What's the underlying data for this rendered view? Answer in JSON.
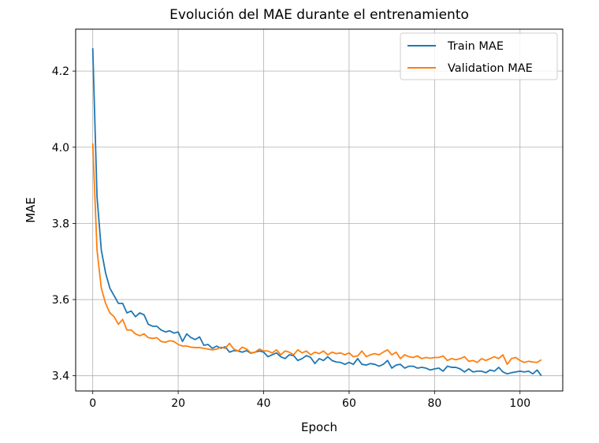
{
  "chart_data": {
    "type": "line",
    "title": "Evolución del MAE durante el entrenamiento",
    "xlabel": "Epoch",
    "ylabel": "MAE",
    "xlim": [
      -4,
      110
    ],
    "ylim": [
      3.36,
      4.31
    ],
    "xticks": [
      0,
      20,
      40,
      60,
      80,
      100
    ],
    "yticks": [
      3.4,
      3.6,
      3.8,
      4.0,
      4.2
    ],
    "xtick_labels": [
      "0",
      "20",
      "40",
      "60",
      "80",
      "100"
    ],
    "ytick_labels": [
      "3.4",
      "3.6",
      "3.8",
      "4.0",
      "4.2"
    ],
    "grid": true,
    "legend_position": "top-right",
    "series": [
      {
        "name": "Train MAE",
        "color": "#1f77b4",
        "values": [
          4.26,
          3.87,
          3.73,
          3.67,
          3.63,
          3.61,
          3.59,
          3.59,
          3.565,
          3.57,
          3.555,
          3.565,
          3.56,
          3.535,
          3.53,
          3.53,
          3.52,
          3.515,
          3.518,
          3.512,
          3.515,
          3.49,
          3.51,
          3.5,
          3.495,
          3.502,
          3.48,
          3.482,
          3.472,
          3.478,
          3.472,
          3.476,
          3.462,
          3.466,
          3.465,
          3.462,
          3.466,
          3.459,
          3.462,
          3.465,
          3.462,
          3.45,
          3.455,
          3.46,
          3.45,
          3.445,
          3.455,
          3.453,
          3.44,
          3.445,
          3.453,
          3.448,
          3.432,
          3.445,
          3.44,
          3.45,
          3.44,
          3.436,
          3.435,
          3.43,
          3.435,
          3.43,
          3.445,
          3.43,
          3.428,
          3.432,
          3.43,
          3.425,
          3.43,
          3.44,
          3.42,
          3.428,
          3.43,
          3.42,
          3.425,
          3.425,
          3.42,
          3.422,
          3.42,
          3.415,
          3.418,
          3.42,
          3.412,
          3.425,
          3.422,
          3.422,
          3.418,
          3.41,
          3.418,
          3.41,
          3.412,
          3.412,
          3.408,
          3.415,
          3.412,
          3.422,
          3.41,
          3.405,
          3.408,
          3.41,
          3.412,
          3.41,
          3.412,
          3.405,
          3.415,
          3.4
        ]
      },
      {
        "name": "Validation MAE",
        "color": "#ff7f0e",
        "values": [
          4.01,
          3.73,
          3.63,
          3.59,
          3.565,
          3.555,
          3.535,
          3.548,
          3.52,
          3.52,
          3.51,
          3.505,
          3.51,
          3.5,
          3.498,
          3.5,
          3.49,
          3.488,
          3.492,
          3.49,
          3.482,
          3.478,
          3.478,
          3.475,
          3.474,
          3.474,
          3.472,
          3.47,
          3.468,
          3.47,
          3.475,
          3.472,
          3.485,
          3.47,
          3.465,
          3.475,
          3.47,
          3.46,
          3.462,
          3.47,
          3.465,
          3.465,
          3.46,
          3.468,
          3.455,
          3.465,
          3.462,
          3.455,
          3.468,
          3.46,
          3.465,
          3.455,
          3.462,
          3.458,
          3.465,
          3.455,
          3.462,
          3.458,
          3.46,
          3.455,
          3.46,
          3.45,
          3.452,
          3.465,
          3.45,
          3.455,
          3.458,
          3.455,
          3.462,
          3.468,
          3.455,
          3.462,
          3.445,
          3.455,
          3.45,
          3.448,
          3.452,
          3.445,
          3.448,
          3.446,
          3.448,
          3.448,
          3.452,
          3.44,
          3.445,
          3.442,
          3.445,
          3.45,
          3.438,
          3.44,
          3.435,
          3.445,
          3.44,
          3.445,
          3.45,
          3.445,
          3.455,
          3.43,
          3.445,
          3.448,
          3.44,
          3.435,
          3.438,
          3.436,
          3.435,
          3.442
        ]
      }
    ]
  }
}
